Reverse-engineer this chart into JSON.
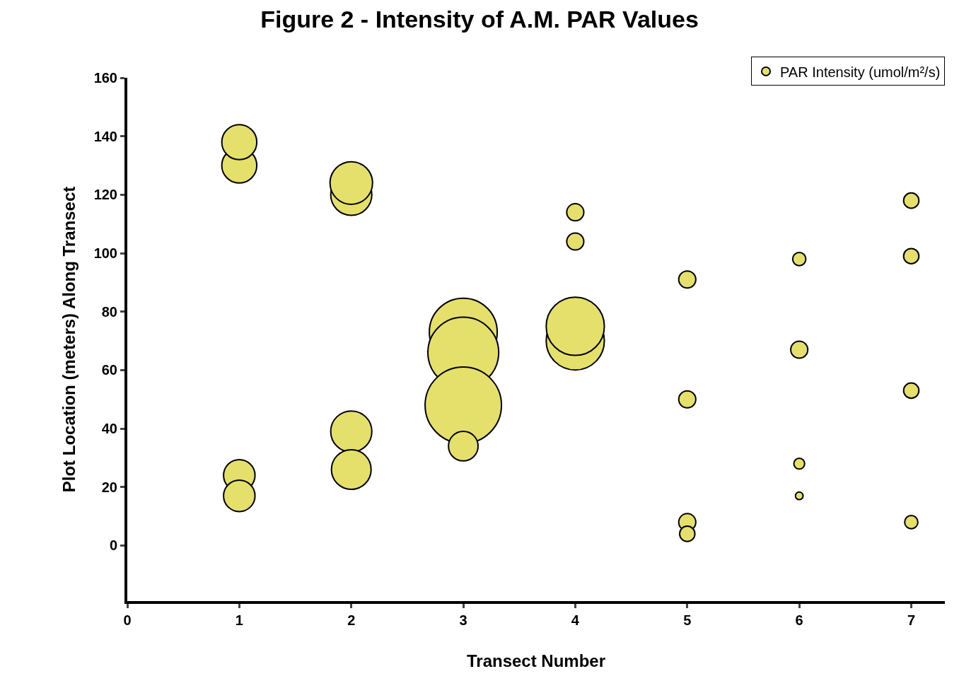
{
  "chart_data": {
    "type": "bubble",
    "title": "Figure 2 - Intensity of A.M. PAR Values",
    "xlabel": "Transect Number",
    "ylabel": "Plot Location (meters) Along Transect",
    "xlim": [
      0,
      7.3
    ],
    "xticks": [
      0,
      1,
      2,
      3,
      4,
      5,
      6,
      7
    ],
    "ylim": [
      -19,
      160
    ],
    "yticks": [
      0,
      20,
      40,
      60,
      80,
      100,
      120,
      140,
      160
    ],
    "legend": "top right",
    "series": [
      {
        "name": "PAR Intensity (umol/m²/s)",
        "color": "#e5df6b",
        "x": [
          1,
          1,
          1,
          1,
          2,
          2,
          2,
          2,
          3,
          3,
          3,
          3,
          4,
          4,
          4,
          4,
          5,
          5,
          5,
          5,
          6,
          6,
          6,
          6,
          7,
          7,
          7,
          7
        ],
        "values": [
          130,
          138,
          24,
          17,
          120,
          124,
          39,
          26,
          73,
          66,
          48,
          34,
          114,
          104,
          70,
          75,
          91,
          50,
          8,
          4,
          98,
          67,
          28,
          17,
          118,
          99,
          53,
          8
        ],
        "sizes": [
          0.21,
          0.21,
          0.17,
          0.17,
          0.29,
          0.31,
          0.29,
          0.27,
          0.79,
          0.86,
          1,
          0.15,
          0.05,
          0.05,
          0.58,
          0.58,
          0.05,
          0.05,
          0.05,
          0.04,
          0.03,
          0.05,
          0.02,
          0.01,
          0.04,
          0.04,
          0.04,
          0.03
        ]
      }
    ]
  }
}
